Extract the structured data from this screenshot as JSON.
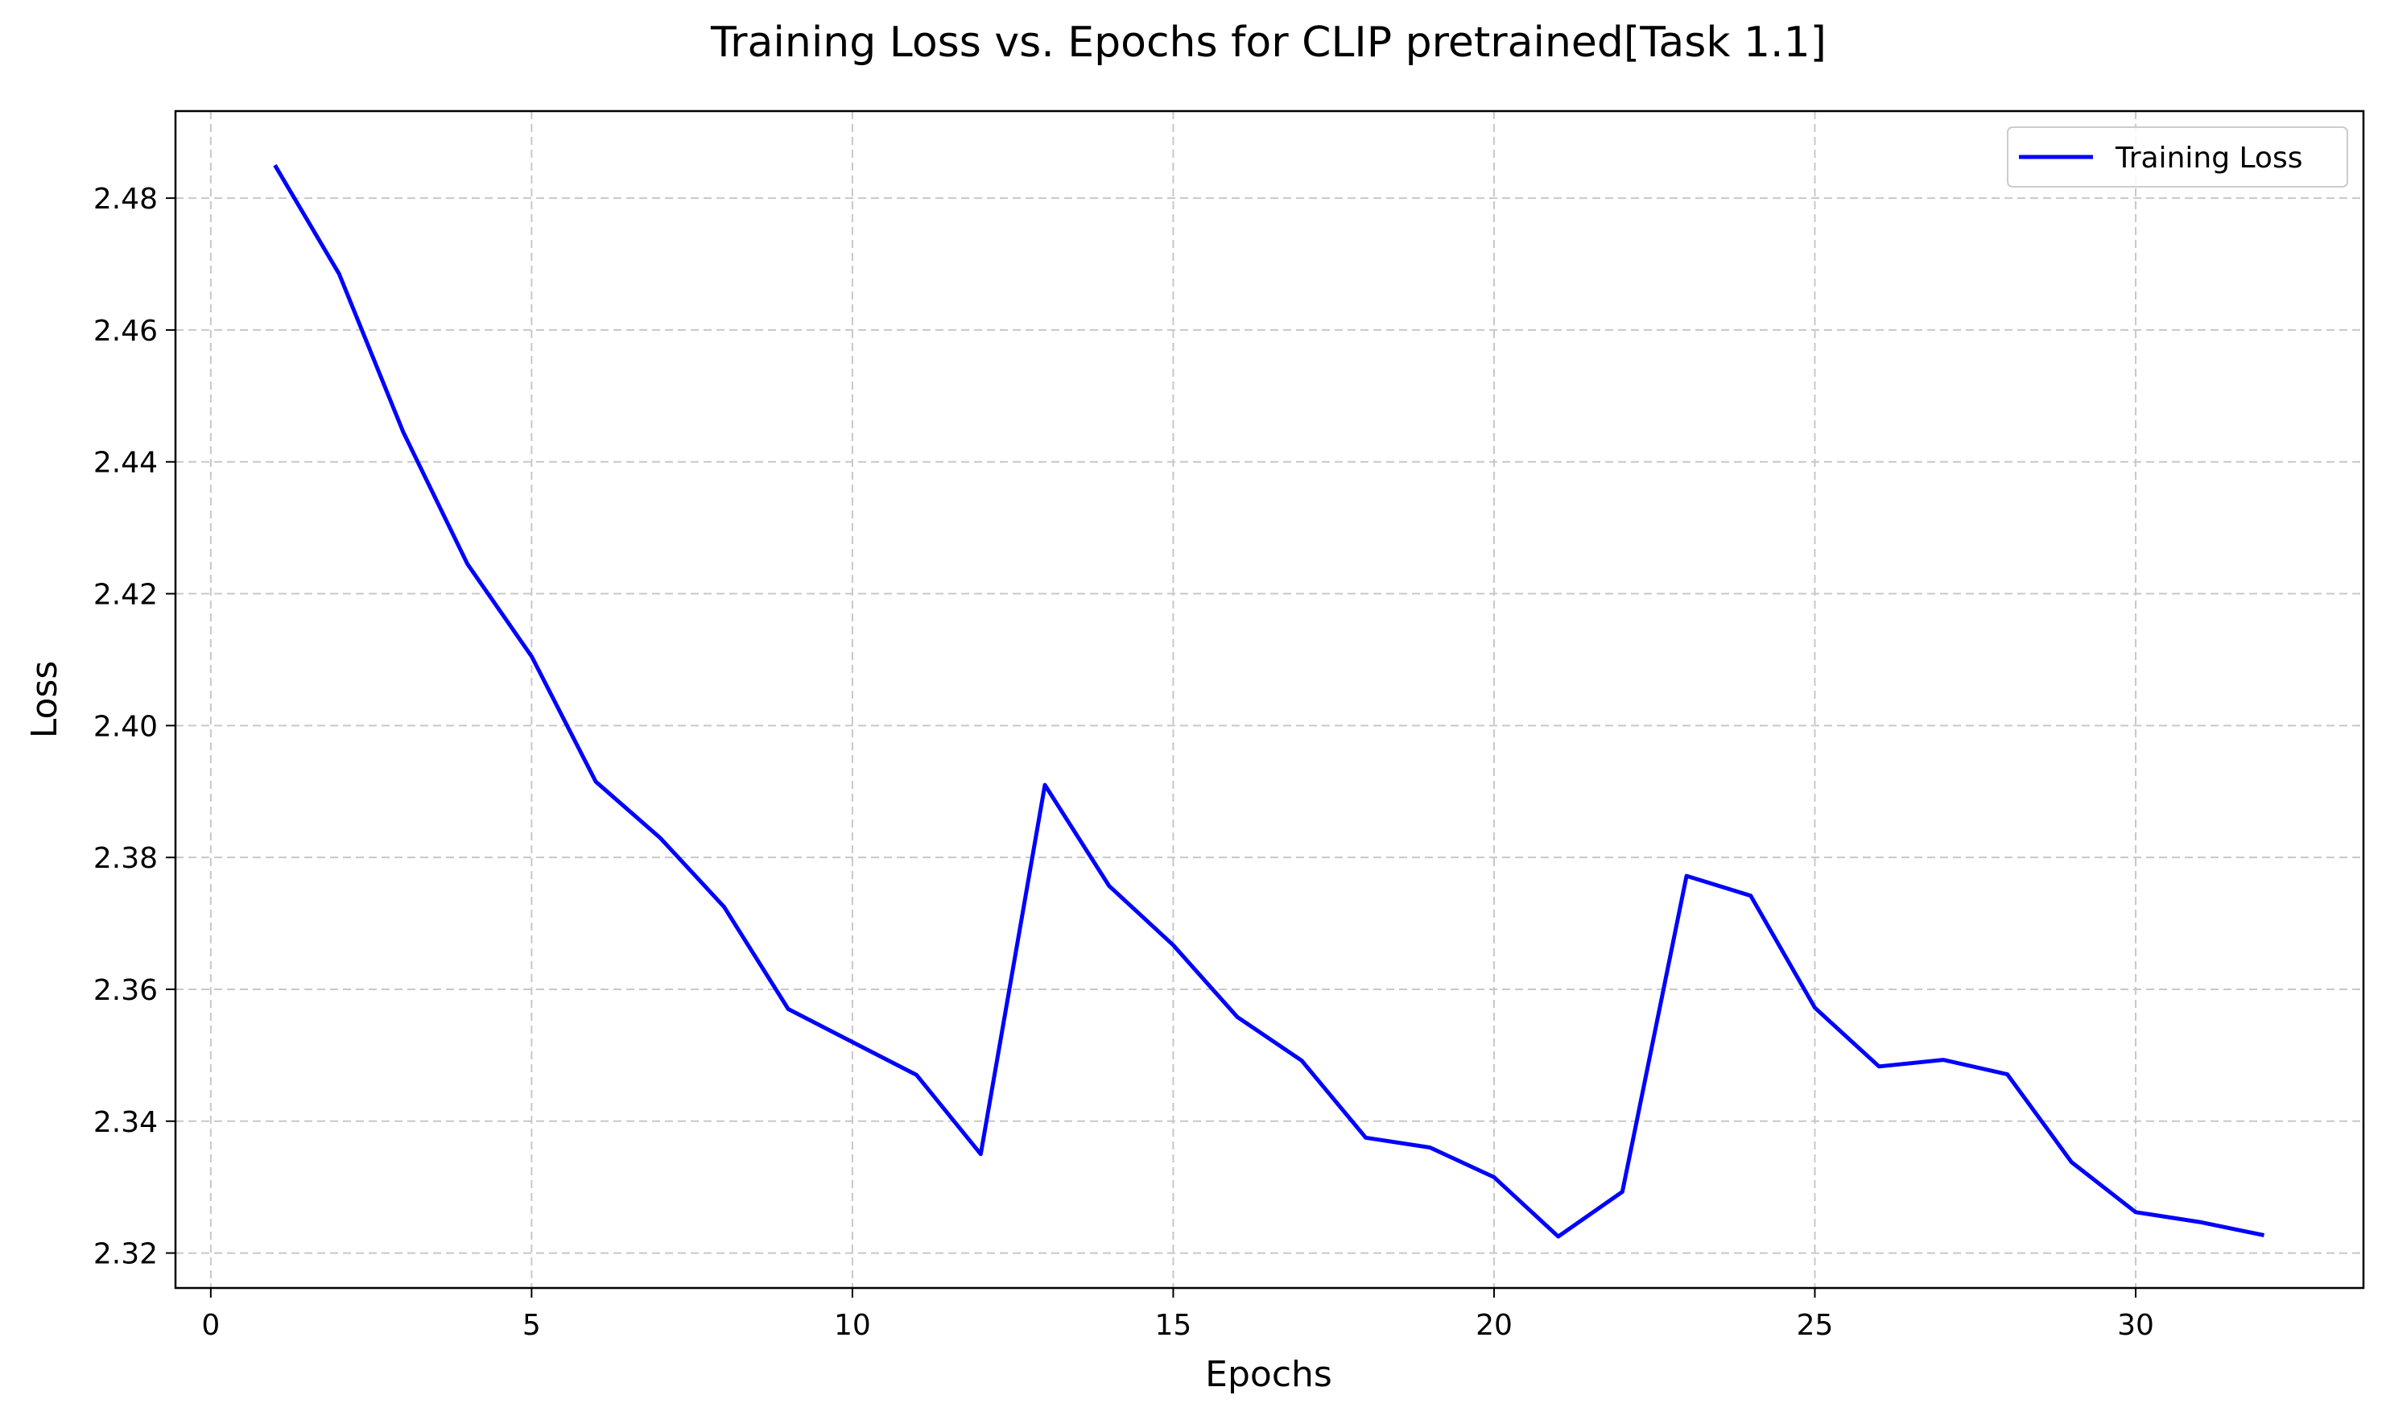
{
  "chart_data": {
    "type": "line",
    "title": "Training Loss vs. Epochs for CLIP pretrained[Task 1.1]",
    "xlabel": "Epochs",
    "ylabel": "Loss",
    "xlim": [
      -0.55,
      33.55
    ],
    "ylim": [
      2.3147,
      2.4932
    ],
    "xticks": [
      0,
      5,
      10,
      15,
      20,
      25,
      30
    ],
    "yticks": [
      2.32,
      2.34,
      2.36,
      2.38,
      2.4,
      2.42,
      2.44,
      2.46,
      2.48
    ],
    "ytick_labels": [
      "2.32",
      "2.34",
      "2.36",
      "2.38",
      "2.40",
      "2.42",
      "2.44",
      "2.46",
      "2.48"
    ],
    "grid": true,
    "legend_position": "top-right",
    "series": [
      {
        "name": "Training Loss",
        "color": "#0000ff",
        "x": [
          1,
          2,
          3,
          4,
          5,
          6,
          7,
          8,
          9,
          10,
          11,
          12,
          13,
          14,
          15,
          16,
          17,
          18,
          19,
          20,
          21,
          22,
          23,
          24,
          25,
          26,
          27,
          28,
          29,
          30,
          31,
          32
        ],
        "y": [
          2.485,
          2.4685,
          2.4445,
          2.4245,
          2.4105,
          2.3915,
          2.383,
          2.3725,
          2.357,
          2.352,
          2.347,
          2.335,
          2.391,
          2.3757,
          2.3667,
          2.3558,
          2.3492,
          2.3375,
          2.336,
          2.3315,
          2.3225,
          2.3293,
          2.3772,
          2.3742,
          2.3572,
          2.3483,
          2.3493,
          2.3471,
          2.3338,
          2.3262,
          2.3247,
          2.3227
        ]
      }
    ]
  }
}
